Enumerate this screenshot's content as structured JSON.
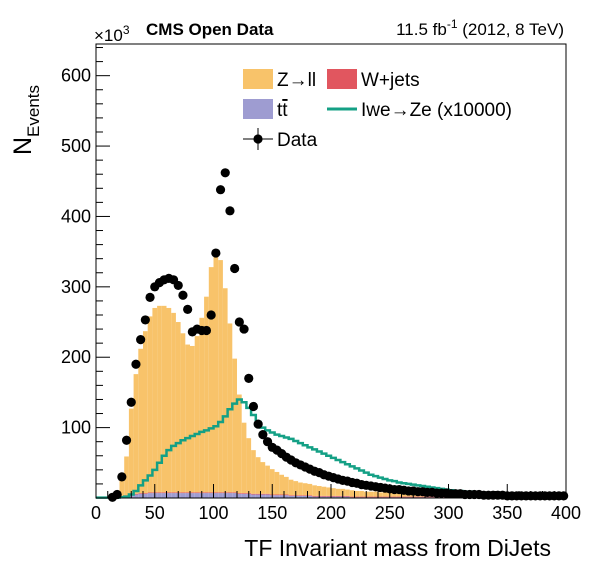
{
  "header": {
    "experiment": "CMS Open Data",
    "lumi_prefix": "11.5 fb",
    "lumi_sup": "-1",
    "lumi_suffix": " (2012, 8 TeV)",
    "y_exponent_prefix": "×10",
    "y_exponent_power": "3"
  },
  "chart_data": {
    "type": "bar",
    "xlabel": "TF Invariant mass from DiJets",
    "ylabel_main": "N",
    "ylabel_sub": "Events",
    "xlim": [
      0,
      400
    ],
    "ylim": [
      0,
      645
    ],
    "y_multiplier": "×10^3",
    "xticks": [
      0,
      50,
      100,
      150,
      200,
      250,
      300,
      350,
      400
    ],
    "yticks": [
      100,
      200,
      300,
      400,
      500,
      600
    ],
    "bin_width": 4,
    "legend": {
      "position": "top-center",
      "entries": [
        {
          "key": "zll",
          "label": "Z→ll",
          "color": "#f8c36a"
        },
        {
          "key": "wjets",
          "label": "W+jets",
          "color": "#e1565f"
        },
        {
          "key": "ttbar",
          "label": "t",
          "label_overline": "t",
          "color": "#9e9cd1"
        },
        {
          "key": "signal",
          "label": "Iwe→Ze (x10000)",
          "color": "#14a085"
        },
        {
          "key": "data",
          "label": "Data",
          "color": "#000000"
        }
      ]
    },
    "stack_series": [
      {
        "name": "ttbar",
        "color": "#9e9cd1",
        "x_start": 20,
        "values": [
          2,
          3,
          4,
          5,
          6,
          6,
          7,
          7,
          7,
          7,
          7,
          7,
          7,
          7,
          7,
          7,
          7,
          7,
          7,
          7,
          7,
          7,
          7,
          7,
          7,
          6,
          6,
          6,
          5,
          5,
          5,
          5,
          4,
          4,
          4,
          4,
          3,
          3,
          3,
          3,
          3,
          2,
          2,
          2,
          2,
          2,
          2,
          2,
          2,
          1,
          1,
          1,
          1,
          1,
          1,
          1,
          1,
          1,
          1,
          1,
          1,
          1,
          1,
          1,
          1,
          1,
          1,
          1,
          1,
          1,
          1,
          1,
          1,
          1,
          1,
          1,
          1,
          1,
          1,
          1,
          1,
          1,
          1,
          1,
          1,
          1,
          1,
          1,
          1,
          1,
          1,
          1,
          1,
          1,
          1
        ]
      },
      {
        "name": "wjets",
        "color": "#e1565f",
        "x_start": 20,
        "values": [
          1,
          1,
          1,
          1,
          1,
          1,
          1,
          1,
          1,
          1,
          1,
          1,
          1,
          1,
          1,
          1,
          1,
          1,
          1,
          1,
          1,
          1,
          1,
          1,
          1,
          1,
          1,
          1,
          1,
          1,
          1,
          1,
          1,
          1,
          1,
          1,
          1,
          1,
          1,
          1,
          1,
          1,
          1,
          1,
          1,
          1,
          1,
          1,
          1,
          1,
          1,
          1,
          1,
          1,
          1,
          1,
          1,
          1,
          1,
          1,
          1,
          1,
          1,
          1,
          1,
          1,
          1,
          1,
          1,
          1,
          1,
          1,
          1,
          1,
          1,
          1,
          1,
          1,
          1,
          1,
          1,
          1,
          1,
          1,
          1,
          1,
          1,
          1,
          1,
          1,
          1,
          1,
          1,
          1,
          1
        ]
      },
      {
        "name": "zll",
        "color": "#f8c36a",
        "x_start": 20,
        "values": [
          22,
          55,
          122,
          170,
          205,
          230,
          250,
          262,
          265,
          265,
          262,
          255,
          242,
          226,
          210,
          208,
          222,
          248,
          278,
          320,
          345,
          330,
          290,
          240,
          190,
          140,
          100,
          78,
          62,
          52,
          45,
          40,
          36,
          32,
          28,
          25,
          22,
          20,
          18,
          17,
          16,
          15,
          14,
          13,
          12,
          11,
          10,
          10,
          9,
          9,
          8,
          8,
          7,
          7,
          7,
          6,
          6,
          6,
          5,
          5,
          5,
          5,
          4,
          4,
          4,
          4,
          4,
          3,
          3,
          3,
          3,
          3,
          3,
          3,
          3,
          2,
          2,
          2,
          2,
          2,
          2,
          2,
          2,
          2,
          2,
          2,
          2,
          2,
          2,
          1,
          1,
          1,
          1,
          1,
          1
        ]
      }
    ],
    "signal_x10000": {
      "name": "Iwe→Ze (x10000)",
      "color": "#14a085",
      "x_start": 0,
      "values": [
        0,
        0,
        0,
        0,
        0,
        1,
        2,
        5,
        10,
        18,
        25,
        32,
        40,
        50,
        60,
        68,
        74,
        78,
        82,
        85,
        88,
        91,
        94,
        96,
        99,
        102,
        108,
        116,
        126,
        134,
        140,
        136,
        128,
        118,
        108,
        100,
        96,
        93,
        90,
        88,
        86,
        84,
        81,
        78,
        75,
        72,
        69,
        66,
        63,
        60,
        57,
        54,
        51,
        48,
        45,
        42,
        39,
        36,
        33,
        31,
        29,
        27,
        25,
        24,
        22,
        21,
        20,
        19,
        18,
        17,
        16,
        15,
        14,
        13,
        12,
        11,
        10,
        10,
        9,
        9,
        8,
        8,
        7,
        7,
        6,
        6,
        5,
        5,
        5,
        4,
        4,
        4,
        3,
        3,
        3,
        3,
        2,
        2,
        2,
        2
      ]
    },
    "data": {
      "name": "Data",
      "x": [
        14,
        18,
        22,
        26,
        30,
        34,
        38,
        42,
        46,
        50,
        54,
        58,
        62,
        66,
        70,
        74,
        78,
        82,
        86,
        90,
        94,
        98,
        102,
        106,
        110,
        114,
        118,
        122,
        126,
        130,
        134,
        138,
        142,
        146,
        150,
        154,
        158,
        162,
        166,
        170,
        174,
        178,
        182,
        186,
        190,
        194,
        198,
        202,
        206,
        210,
        214,
        218,
        222,
        226,
        230,
        234,
        238,
        242,
        246,
        250,
        254,
        258,
        262,
        266,
        270,
        274,
        278,
        282,
        286,
        290,
        294,
        298,
        302,
        306,
        310,
        314,
        318,
        322,
        326,
        330,
        334,
        338,
        342,
        346,
        350,
        354,
        358,
        362,
        366,
        370,
        374,
        378,
        382,
        386,
        390,
        394,
        398
      ],
      "y": [
        1,
        5,
        30,
        82,
        136,
        190,
        225,
        253,
        285,
        300,
        306,
        310,
        312,
        310,
        302,
        288,
        268,
        236,
        240,
        238,
        238,
        260,
        348,
        438,
        462,
        408,
        326,
        250,
        240,
        170,
        130,
        105,
        90,
        80,
        72,
        68,
        63,
        58,
        54,
        50,
        47,
        44,
        41,
        38,
        36,
        33,
        31,
        29,
        27,
        25,
        24,
        22,
        21,
        19,
        18,
        17,
        16,
        15,
        14,
        13,
        12,
        12,
        11,
        10,
        10,
        9,
        9,
        8,
        8,
        7,
        7,
        7,
        6,
        6,
        6,
        5,
        5,
        5,
        5,
        4,
        4,
        4,
        4,
        4,
        3,
        3,
        3,
        3,
        3,
        3,
        3,
        3,
        3,
        3,
        3,
        3,
        3
      ]
    }
  }
}
